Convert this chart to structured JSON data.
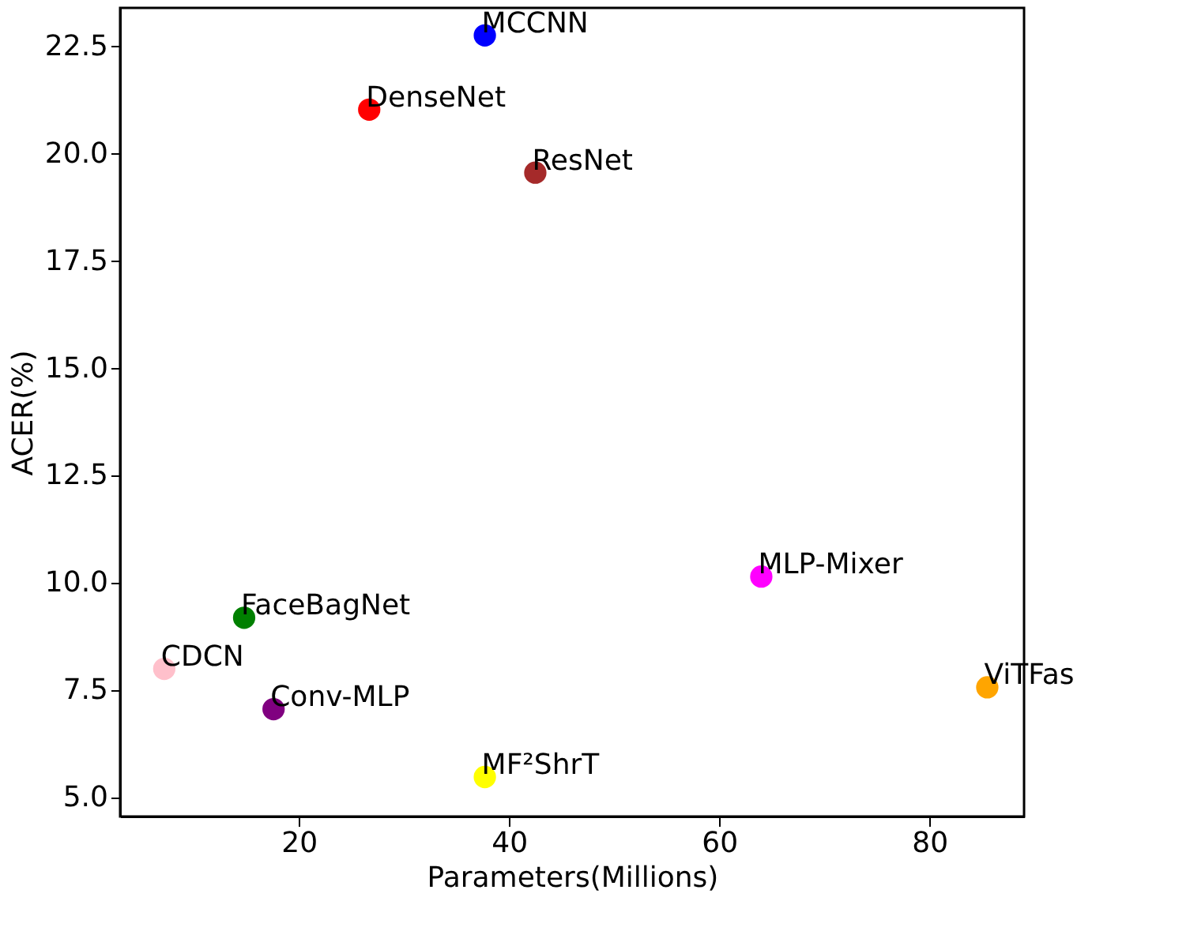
{
  "chart_data": {
    "type": "scatter",
    "xlabel": "Parameters(Millions)",
    "ylabel": "ACER(%)",
    "xlim": [
      3,
      89
    ],
    "xticks": [
      20,
      40,
      60,
      80
    ],
    "ylim": [
      4.56,
      23.4
    ],
    "yticks": [
      {
        "value": 5,
        "label": "5.0"
      },
      {
        "value": 7.5,
        "label": "7.5"
      },
      {
        "value": 10,
        "label": "10.0"
      },
      {
        "value": 12.5,
        "label": "12.5"
      },
      {
        "value": 15,
        "label": "15.0"
      },
      {
        "value": 17.5,
        "label": "17.5"
      },
      {
        "value": 20,
        "label": "20.0"
      },
      {
        "value": 22.5,
        "label": "22.5"
      }
    ],
    "grid": false,
    "legend": false,
    "marker": "circle",
    "series": [
      {
        "name": "MCCNN",
        "color": "#0000ff",
        "x": [
          37.7
        ],
        "values": [
          22.76
        ]
      },
      {
        "name": "DenseNet",
        "color": "#ff0000",
        "x": [
          26.7
        ],
        "values": [
          21.03
        ]
      },
      {
        "name": "ResNet",
        "color": "#a52a2a",
        "x": [
          42.5
        ],
        "values": [
          19.56
        ]
      },
      {
        "name": "MLP-Mixer",
        "color": "#ff00ff",
        "x": [
          64.0
        ],
        "values": [
          10.15
        ]
      },
      {
        "name": "ViTFas",
        "color": "#ffa500",
        "x": [
          85.5
        ],
        "values": [
          7.57
        ]
      },
      {
        "name": "FaceBagNet",
        "color": "#008000",
        "x": [
          14.8
        ],
        "values": [
          9.19
        ]
      },
      {
        "name": "CDCN",
        "color": "#ffc0cb",
        "x": [
          7.2
        ],
        "values": [
          8.0
        ]
      },
      {
        "name": "Conv-MLP",
        "color": "#800080",
        "x": [
          17.6
        ],
        "values": [
          7.06
        ]
      },
      {
        "name": "MF²ShrT",
        "color": "#ffff00",
        "x": [
          37.7
        ],
        "values": [
          5.48
        ]
      }
    ]
  }
}
